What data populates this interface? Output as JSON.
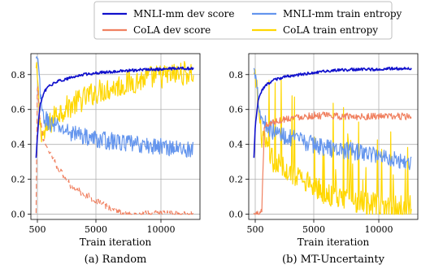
{
  "chart_data": {
    "type": "line",
    "legend": {
      "placement": "top-center",
      "entries": [
        {
          "key": "mnli_dev",
          "label": "MNLI-mm dev score",
          "color": "#1010cc",
          "style": "solid"
        },
        {
          "key": "cola_dev",
          "label": "CoLA dev score",
          "color": "#f08060",
          "style": "solid"
        },
        {
          "key": "mnli_ent",
          "label": "MNLI-mm train entropy",
          "color": "#6495ed",
          "style": "solid"
        },
        {
          "key": "cola_ent",
          "label": "CoLA train entropy",
          "color": "#ffd700",
          "style": "solid"
        }
      ]
    },
    "panels": [
      {
        "caption": "(a) Random",
        "xlabel": "Train iteration",
        "ylabel": "",
        "xlim": [
          0,
          13000
        ],
        "ylim": [
          -0.03,
          0.92
        ],
        "xticks": [
          500,
          5000,
          10000
        ],
        "xtick_labels": [
          "500",
          "5000",
          "10000"
        ],
        "yticks": [
          0.0,
          0.2,
          0.4,
          0.6,
          0.8
        ],
        "ytick_labels": [
          "0.0",
          "0.2",
          "0.4",
          "0.6",
          "0.8"
        ],
        "grid": true,
        "series": [
          {
            "key": "cola_ent",
            "color": "#ffd700",
            "dashed": false,
            "x": [
              400,
              500,
              700,
              1000,
              1500,
              2000,
              2500,
              3000,
              4000,
              5000,
              6000,
              7000,
              8000,
              9000,
              10000,
              11000,
              12000,
              12500
            ],
            "y": [
              0.82,
              0.78,
              0.5,
              0.45,
              0.52,
              0.58,
              0.6,
              0.62,
              0.66,
              0.7,
              0.72,
              0.74,
              0.76,
              0.78,
              0.79,
              0.8,
              0.81,
              0.8
            ]
          },
          {
            "key": "mnli_ent",
            "color": "#6495ed",
            "dashed": false,
            "x": [
              400,
              600,
              800,
              1000,
              1500,
              2000,
              3000,
              4000,
              5000,
              6000,
              7000,
              8000,
              9000,
              10000,
              11000,
              12000,
              12500
            ],
            "y": [
              0.88,
              0.85,
              0.6,
              0.55,
              0.52,
              0.5,
              0.47,
              0.45,
              0.43,
              0.42,
              0.41,
              0.4,
              0.39,
              0.39,
              0.38,
              0.37,
              0.37
            ]
          },
          {
            "key": "cola_dev",
            "color": "#f08060",
            "dashed": true,
            "x": [
              400,
              500,
              700,
              1000,
              1500,
              2000,
              2500,
              3000,
              4000,
              5000,
              6000,
              6500,
              7000,
              8000,
              10000,
              12500
            ],
            "y": [
              0.0,
              0.75,
              0.55,
              0.42,
              0.35,
              0.28,
              0.22,
              0.17,
              0.12,
              0.08,
              0.04,
              0.02,
              0.0,
              0.0,
              0.0,
              0.0
            ]
          },
          {
            "key": "mnli_dev",
            "color": "#1010cc",
            "dashed": false,
            "x": [
              400,
              500,
              700,
              1000,
              1500,
              2000,
              3000,
              4000,
              5000,
              6000,
              7000,
              8000,
              9000,
              10000,
              11000,
              12000,
              12500
            ],
            "y": [
              0.32,
              0.45,
              0.62,
              0.7,
              0.74,
              0.76,
              0.78,
              0.8,
              0.81,
              0.815,
              0.82,
              0.825,
              0.83,
              0.83,
              0.835,
              0.835,
              0.835
            ]
          }
        ]
      },
      {
        "caption": "(b) MT-Uncertainty",
        "xlabel": "Train iteration",
        "ylabel": "",
        "xlim": [
          0,
          13000
        ],
        "ylim": [
          -0.03,
          0.92
        ],
        "xticks": [
          500,
          5000,
          10000
        ],
        "xtick_labels": [
          "500",
          "5000",
          "10000"
        ],
        "yticks": [
          0.0,
          0.2,
          0.4,
          0.6,
          0.8
        ],
        "ytick_labels": [
          "0.0",
          "0.2",
          "0.4",
          "0.6",
          "0.8"
        ],
        "grid": true,
        "series": [
          {
            "key": "cola_ent",
            "color": "#ffd700",
            "dashed": false,
            "x": [
              400,
              600,
              800,
              1000,
              1500,
              2000,
              3000,
              4000,
              5000,
              6000,
              7000,
              8000,
              9000,
              10000,
              11000,
              12000,
              12500
            ],
            "y": [
              0.78,
              0.75,
              0.55,
              0.45,
              0.35,
              0.3,
              0.25,
              0.2,
              0.15,
              0.12,
              0.1,
              0.08,
              0.06,
              0.05,
              0.04,
              0.04,
              0.04
            ]
          },
          {
            "key": "mnli_ent",
            "color": "#6495ed",
            "dashed": false,
            "x": [
              400,
              600,
              800,
              1000,
              1500,
              2000,
              3000,
              4000,
              5000,
              6000,
              7000,
              8000,
              9000,
              10000,
              11000,
              12000,
              12500
            ],
            "y": [
              0.82,
              0.8,
              0.6,
              0.55,
              0.5,
              0.47,
              0.44,
              0.42,
              0.4,
              0.38,
              0.37,
              0.36,
              0.35,
              0.34,
              0.32,
              0.3,
              0.3
            ]
          },
          {
            "key": "cola_dev",
            "color": "#f08060",
            "dashed": false,
            "x": [
              400,
              800,
              1000,
              1200,
              1500,
              2000,
              3000,
              4000,
              5000,
              6000,
              7000,
              8000,
              9000,
              10000,
              11000,
              12000,
              12500
            ],
            "y": [
              0.0,
              0.0,
              0.02,
              0.5,
              0.52,
              0.53,
              0.55,
              0.56,
              0.565,
              0.565,
              0.56,
              0.56,
              0.56,
              0.56,
              0.56,
              0.56,
              0.56
            ]
          },
          {
            "key": "mnli_dev",
            "color": "#1010cc",
            "dashed": false,
            "x": [
              400,
              500,
              700,
              1000,
              1500,
              2000,
              3000,
              4000,
              5000,
              6000,
              7000,
              8000,
              9000,
              10000,
              11000,
              12000,
              12500
            ],
            "y": [
              0.32,
              0.5,
              0.64,
              0.71,
              0.75,
              0.77,
              0.79,
              0.8,
              0.81,
              0.82,
              0.825,
              0.83,
              0.83,
              0.83,
              0.835,
              0.835,
              0.835
            ]
          }
        ]
      }
    ]
  }
}
